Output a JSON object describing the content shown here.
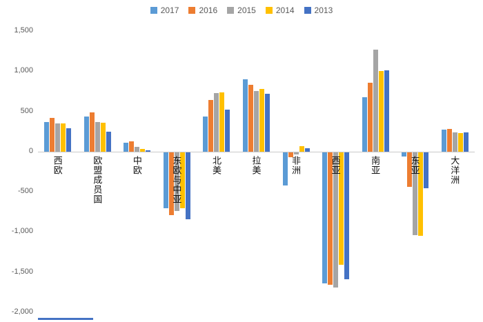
{
  "chart_data": {
    "type": "bar",
    "title": "",
    "xlabel": "",
    "ylabel": "",
    "grid": false,
    "legend_position": "top",
    "ylim": [
      -2000,
      1500
    ],
    "categories": [
      "西欧",
      "欧盟成员国",
      "中欧",
      "东欧与中亚",
      "北美",
      "拉美",
      "非洲",
      "西亚",
      "南亚",
      "东亚",
      "大洋洲"
    ],
    "series": [
      {
        "name": "2017",
        "color": "#5B9BD5",
        "values": [
          370,
          440,
          110,
          -700,
          440,
          900,
          -410,
          -1630,
          680,
          -50,
          270
        ]
      },
      {
        "name": "2016",
        "color": "#ED7D31",
        "values": [
          420,
          490,
          130,
          -780,
          640,
          830,
          -60,
          -1650,
          860,
          -430,
          280
        ]
      },
      {
        "name": "2015",
        "color": "#A5A5A5",
        "values": [
          350,
          370,
          60,
          -730,
          730,
          750,
          -30,
          -1680,
          1270,
          -1030,
          240
        ]
      },
      {
        "name": "2014",
        "color": "#FFC000",
        "values": [
          350,
          360,
          30,
          -700,
          740,
          780,
          70,
          -1400,
          1000,
          -1040,
          230
        ]
      },
      {
        "name": "2013",
        "color": "#4472C4",
        "values": [
          290,
          250,
          20,
          -830,
          520,
          720,
          40,
          -1580,
          1010,
          -450,
          240
        ]
      }
    ],
    "y_ticks": [
      {
        "label": "1,500",
        "value": 1500
      },
      {
        "label": "1,000",
        "value": 1000
      },
      {
        "label": "500",
        "value": 500
      },
      {
        "label": "0",
        "value": 0
      },
      {
        "label": "-500",
        "value": -500
      },
      {
        "label": "-1,000",
        "value": -1000
      },
      {
        "label": "-1,500",
        "value": -1500
      },
      {
        "label": "-2,000",
        "value": -2000
      }
    ],
    "zero_line_color": "#c9c9c9",
    "bottom_artifact_color": "#4472C4"
  }
}
